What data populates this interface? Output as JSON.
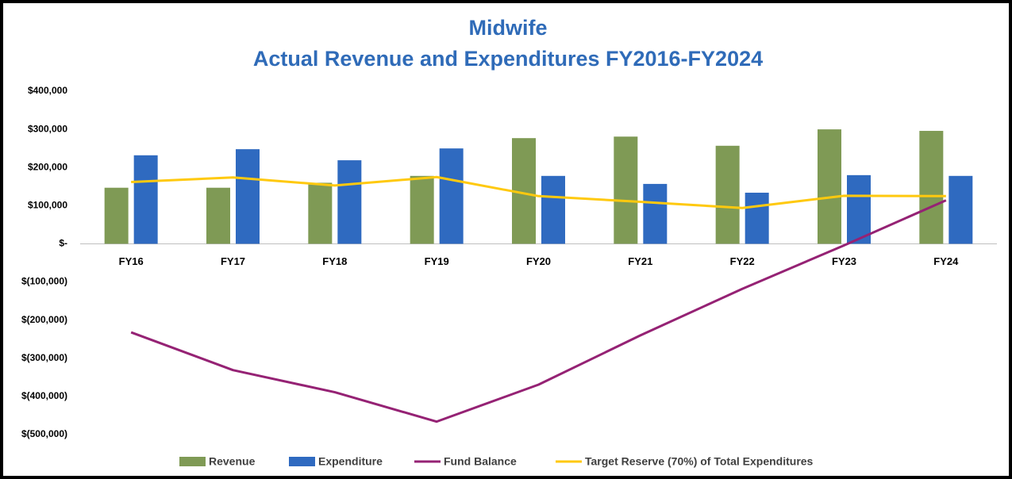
{
  "chart_data": {
    "type": "bar",
    "title": "Midwife",
    "subtitle": "Actual Revenue and Expenditures FY2016-FY2024",
    "categories": [
      "FY16",
      "FY17",
      "FY18",
      "FY19",
      "FY20",
      "FY21",
      "FY22",
      "FY23",
      "FY24"
    ],
    "series": [
      {
        "name": "Revenue",
        "type": "bar",
        "color": "#7f9a55",
        "values": [
          147000,
          147000,
          160000,
          178000,
          277000,
          281000,
          257000,
          300000,
          296000
        ]
      },
      {
        "name": "Expenditure",
        "type": "bar",
        "color": "#2f6ac0",
        "values": [
          232000,
          248000,
          219000,
          250000,
          178000,
          157000,
          134000,
          180000,
          178000
        ]
      },
      {
        "name": "Fund Balance",
        "type": "line",
        "color": "#952274",
        "values": [
          -232000,
          -331000,
          -389000,
          -466000,
          -369000,
          -240000,
          -118000,
          -4000,
          114000
        ]
      },
      {
        "name": "Target Reserve (70%) of Total Expenditures",
        "type": "line",
        "color": "#ffc90e",
        "values": [
          162000,
          174000,
          153000,
          175000,
          125000,
          110000,
          94000,
          126000,
          125000
        ]
      }
    ],
    "ylim": [
      -500000,
      400000
    ],
    "yticks": [
      {
        "value": 400000,
        "label": "$400,000"
      },
      {
        "value": 300000,
        "label": "$300,000"
      },
      {
        "value": 200000,
        "label": "$200,000"
      },
      {
        "value": 100000,
        "label": "$100,000"
      },
      {
        "value": 0,
        "label": "$-"
      },
      {
        "value": -100000,
        "label": "$(100,000)"
      },
      {
        "value": -200000,
        "label": "$(200,000)"
      },
      {
        "value": -300000,
        "label": "$(300,000)"
      },
      {
        "value": -400000,
        "label": "$(400,000)"
      },
      {
        "value": -500000,
        "label": "$(500,000)"
      }
    ],
    "grid": false,
    "legend": "bottom"
  }
}
